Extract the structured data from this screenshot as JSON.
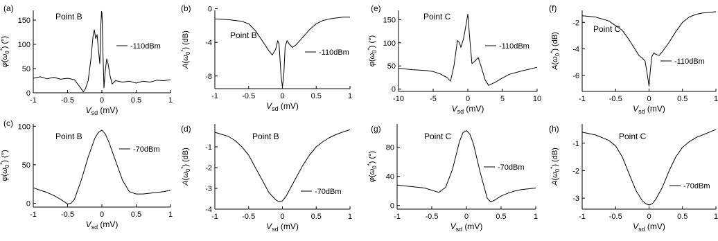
{
  "colors": {
    "line": "#000000",
    "background": "#ffffff"
  },
  "chart_data": [
    {
      "id": "a",
      "panel_label": "(a)",
      "type": "line",
      "annotation": "Point B",
      "legend": "-110dBm",
      "xlim": [
        -1,
        1
      ],
      "ylim": [
        0,
        170
      ],
      "xticks": [
        "-1",
        "-0.5",
        "0",
        "0.5",
        "1"
      ],
      "yticks": [
        "0",
        "50",
        "100",
        "150"
      ],
      "ytick_values": [
        0,
        50,
        100,
        150
      ],
      "xlabel": "V_sd (mV)",
      "ylabel": "φ(ω0*) (°)",
      "series": [
        {
          "x": [
            -1,
            -0.9,
            -0.8,
            -0.7,
            -0.6,
            -0.5,
            -0.4,
            -0.32,
            -0.27,
            -0.24,
            -0.2,
            -0.16,
            -0.13,
            -0.11,
            -0.09,
            -0.07,
            -0.05,
            -0.03,
            -0.015,
            -0.005,
            0,
            0.005,
            0.015,
            0.03,
            0.05,
            0.07,
            0.09,
            0.12,
            0.15,
            0.2,
            0.3,
            0.4,
            0.5,
            0.6,
            0.7,
            0.8,
            0.9,
            1
          ],
          "y": [
            30,
            33,
            29,
            32,
            28,
            30,
            27,
            12,
            2,
            8,
            25,
            70,
            115,
            130,
            112,
            120,
            88,
            60,
            140,
            168,
            165,
            150,
            85,
            10,
            45,
            70,
            60,
            35,
            18,
            25,
            22,
            24,
            20,
            24,
            22,
            26,
            25,
            27
          ]
        }
      ]
    },
    {
      "id": "b",
      "panel_label": "(b)",
      "type": "line",
      "annotation": "Point B",
      "legend": "-110dBm",
      "xlim": [
        -1,
        1
      ],
      "ylim": [
        -9.5,
        -0.2
      ],
      "xticks": [
        "-1",
        "-0.5",
        "0",
        "0.5",
        "1"
      ],
      "yticks": [
        "-8",
        "-4",
        "0"
      ],
      "ytick_values": [
        -8,
        -4,
        0
      ],
      "xlabel": "V_sd (mV)",
      "ylabel": "A(ω0*) (dB)",
      "series": [
        {
          "x": [
            -1,
            -0.8,
            -0.6,
            -0.5,
            -0.4,
            -0.3,
            -0.2,
            -0.15,
            -0.1,
            -0.07,
            -0.05,
            -0.02,
            0,
            0.02,
            0.04,
            0.07,
            0.1,
            0.15,
            0.2,
            0.3,
            0.4,
            0.5,
            0.6,
            0.7,
            0.8,
            0.9,
            1
          ],
          "y": [
            -1.2,
            -1.3,
            -1.5,
            -1.8,
            -2.6,
            -3.8,
            -5,
            -5.5,
            -4.8,
            -3.8,
            -4.2,
            -8,
            -9.3,
            -8,
            -4.5,
            -3.8,
            -4.2,
            -4.6,
            -4.3,
            -3.4,
            -2.5,
            -1.8,
            -1.4,
            -1.2,
            -1.1,
            -1.0,
            -1.0
          ]
        }
      ]
    },
    {
      "id": "e",
      "panel_label": "(e)",
      "type": "line",
      "annotation": "Point C",
      "legend": "-110dBm",
      "xlim": [
        -10,
        10
      ],
      "ylim": [
        -5,
        170
      ],
      "xticks": [
        "-10",
        "-5",
        "0",
        "5",
        "10"
      ],
      "yticks": [
        "0",
        "50",
        "100",
        "150"
      ],
      "ytick_values": [
        0,
        50,
        100,
        150
      ],
      "xlabel": "V_sd (mV)",
      "ylabel": "φ(ω0*) (°)",
      "series": [
        {
          "x": [
            -10,
            -8,
            -6,
            -5,
            -4,
            -3,
            -2.5,
            -2,
            -1.5,
            -1.2,
            -1,
            -0.6,
            -0.3,
            0,
            0.3,
            0.6,
            1,
            1.5,
            2,
            2.5,
            3,
            4,
            5,
            6,
            8,
            10
          ],
          "y": [
            45,
            42,
            40,
            38,
            33,
            25,
            17,
            50,
            105,
            100,
            90,
            110,
            135,
            162,
            105,
            55,
            60,
            68,
            45,
            20,
            8,
            15,
            24,
            32,
            40,
            47
          ]
        }
      ]
    },
    {
      "id": "f",
      "panel_label": "(f)",
      "type": "line",
      "annotation": "Point C",
      "legend": "-110dBm",
      "xlim": [
        -1,
        1
      ],
      "ylim": [
        -7.2,
        -1.1
      ],
      "xticks": [
        "-1",
        "-0.5",
        "0",
        "0.5",
        "1"
      ],
      "yticks": [
        "-6",
        "-4",
        "-2"
      ],
      "ytick_values": [
        -6,
        -4,
        -2
      ],
      "xlabel": "V_sd (mV)",
      "ylabel": "A(ω0*) (dB)",
      "series": [
        {
          "x": [
            -1,
            -0.8,
            -0.6,
            -0.4,
            -0.3,
            -0.2,
            -0.15,
            -0.1,
            -0.06,
            -0.03,
            0,
            0.02,
            0.04,
            0.07,
            0.1,
            0.15,
            0.2,
            0.3,
            0.4,
            0.5,
            0.6,
            0.7,
            0.8,
            0.9,
            1
          ],
          "y": [
            -1.5,
            -1.6,
            -1.9,
            -2.6,
            -3.3,
            -4.1,
            -4.5,
            -4.7,
            -4.9,
            -5.8,
            -6.8,
            -5.6,
            -4.6,
            -4.3,
            -4.4,
            -4.5,
            -4.2,
            -3.5,
            -2.7,
            -2.0,
            -1.6,
            -1.4,
            -1.3,
            -1.25,
            -1.2
          ]
        }
      ]
    },
    {
      "id": "c",
      "panel_label": "(c)",
      "type": "line",
      "annotation": "Point B",
      "legend": "-70dBm",
      "xlim": [
        -1,
        1
      ],
      "ylim": [
        -5,
        103
      ],
      "xticks": [
        "-1",
        "-0.5",
        "0",
        "0.5",
        "1"
      ],
      "yticks": [
        "0",
        "50",
        "100"
      ],
      "ytick_values": [
        0,
        50,
        100
      ],
      "xlabel": "V_sd (mV)",
      "ylabel": "φ(ω0*) (°)",
      "series": [
        {
          "x": [
            -1,
            -0.9,
            -0.8,
            -0.7,
            -0.6,
            -0.5,
            -0.45,
            -0.4,
            -0.3,
            -0.2,
            -0.1,
            -0.05,
            0,
            0.05,
            0.1,
            0.2,
            0.3,
            0.4,
            0.5,
            0.6,
            0.7,
            0.8,
            0.9,
            1
          ],
          "y": [
            20,
            17,
            14,
            10,
            5,
            -1,
            0,
            5,
            30,
            60,
            85,
            92,
            95,
            90,
            80,
            55,
            30,
            15,
            12,
            12,
            13,
            14,
            15,
            17
          ]
        }
      ]
    },
    {
      "id": "d",
      "panel_label": "(d)",
      "type": "line",
      "annotation": "Point B",
      "legend": "-70dBm",
      "xlim": [
        -1,
        1
      ],
      "ylim": [
        -4,
        0.1
      ],
      "xticks": [
        "-1",
        "-0.5",
        "0",
        "0.5",
        "1"
      ],
      "yticks": [
        "-4",
        "-3",
        "-2",
        "-1"
      ],
      "ytick_values": [
        -4,
        -3,
        -2,
        -1
      ],
      "xlabel": "V_sd (mV)",
      "ylabel": "A(ω0*) (dB)",
      "series": [
        {
          "x": [
            -1,
            -0.9,
            -0.8,
            -0.7,
            -0.6,
            -0.5,
            -0.4,
            -0.3,
            -0.2,
            -0.1,
            -0.05,
            0,
            0.05,
            0.1,
            0.2,
            0.3,
            0.4,
            0.5,
            0.6,
            0.7,
            0.8,
            0.9,
            1
          ],
          "y": [
            -0.3,
            -0.4,
            -0.5,
            -0.7,
            -1.0,
            -1.4,
            -2.0,
            -2.6,
            -3.2,
            -3.55,
            -3.65,
            -3.6,
            -3.4,
            -3.1,
            -2.5,
            -1.9,
            -1.4,
            -1.0,
            -0.75,
            -0.55,
            -0.4,
            -0.28,
            -0.18
          ]
        }
      ]
    },
    {
      "id": "g",
      "panel_label": "(g)",
      "type": "line",
      "annotation": "Point C",
      "legend": "-70dBm",
      "xlim": [
        -1,
        1
      ],
      "ylim": [
        -5,
        112
      ],
      "xticks": [
        "-1",
        "-0.5",
        "0",
        "0.5",
        "1"
      ],
      "yticks": [
        "0",
        "40",
        "80"
      ],
      "ytick_values": [
        0,
        40,
        80
      ],
      "xlabel": "V_sd (mV)",
      "ylabel": "φ(ω0*) (°)",
      "series": [
        {
          "x": [
            -1,
            -0.8,
            -0.6,
            -0.4,
            -0.3,
            -0.2,
            -0.1,
            -0.05,
            0,
            0.05,
            0.1,
            0.2,
            0.3,
            0.35,
            0.4,
            0.5,
            0.6,
            0.7,
            0.8,
            0.9,
            1
          ],
          "y": [
            28,
            26,
            24,
            18,
            25,
            50,
            88,
            100,
            103,
            98,
            85,
            45,
            10,
            5,
            7,
            13,
            17,
            20,
            22,
            23,
            24
          ]
        }
      ]
    },
    {
      "id": "h",
      "panel_label": "(h)",
      "type": "line",
      "annotation": "Point C",
      "legend": "-70dBm",
      "xlim": [
        -1,
        1
      ],
      "ylim": [
        -3.4,
        -0.3
      ],
      "xticks": [
        "-1",
        "-0.5",
        "0",
        "0.5",
        "1"
      ],
      "yticks": [
        "-3",
        "-2",
        "-1"
      ],
      "ytick_values": [
        -3,
        -2,
        -1
      ],
      "xlabel": "V_sd (mV)",
      "ylabel": "A(ω0*) (dB)",
      "series": [
        {
          "x": [
            -1,
            -0.8,
            -0.6,
            -0.5,
            -0.4,
            -0.3,
            -0.2,
            -0.1,
            -0.05,
            0,
            0.05,
            0.1,
            0.2,
            0.3,
            0.4,
            0.5,
            0.6,
            0.7,
            0.8,
            0.9,
            1
          ],
          "y": [
            -0.6,
            -0.7,
            -0.9,
            -1.1,
            -1.5,
            -2.1,
            -2.7,
            -3.1,
            -3.2,
            -3.25,
            -3.2,
            -3.05,
            -2.6,
            -2.0,
            -1.5,
            -1.15,
            -0.95,
            -0.8,
            -0.7,
            -0.6,
            -0.5
          ]
        }
      ]
    }
  ]
}
